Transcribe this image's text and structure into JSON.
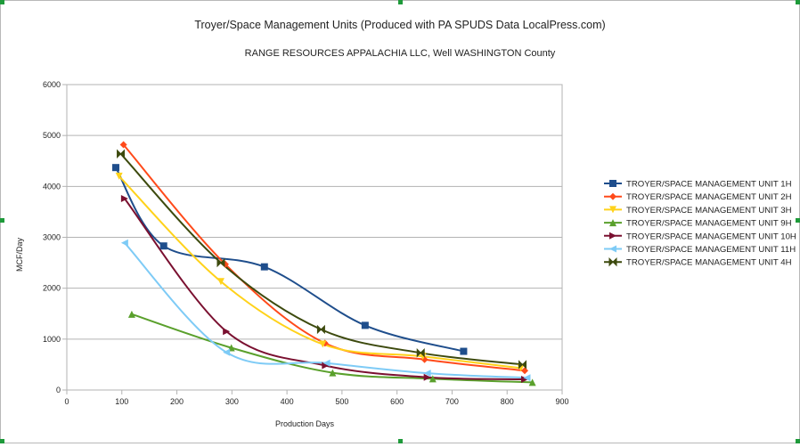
{
  "chart_data": {
    "type": "line",
    "title": "Troyer/Space Management Units (Produced with PA SPUDS Data LocalPress.com)",
    "subtitle": "RANGE RESOURCES APPALACHIA LLC, Well  WASHINGTON County",
    "xlabel": "Production Days",
    "ylabel": "MCF/Day",
    "xlim": [
      0,
      900
    ],
    "ylim": [
      0,
      6000
    ],
    "xticks": [
      "0",
      "100",
      "200",
      "300",
      "400",
      "500",
      "600",
      "700",
      "800",
      "900"
    ],
    "yticks": [
      "0",
      "1000",
      "2000",
      "3000",
      "4000",
      "5000",
      "6000"
    ],
    "grid": true,
    "legend_position": "right",
    "series": [
      {
        "name": "TROYER/SPACE MANAGEMENT UNIT 1H",
        "color": "#1f4e8c",
        "marker": "square",
        "x": [
          89,
          176,
          359,
          542,
          721
        ],
        "y": [
          4370,
          2830,
          2420,
          1270,
          760
        ]
      },
      {
        "name": "TROYER/SPACE MANAGEMENT UNIT 2H",
        "color": "#ff4a1a",
        "marker": "diamond",
        "x": [
          103,
          288,
          469,
          650,
          832
        ],
        "y": [
          4820,
          2470,
          920,
          600,
          380
        ]
      },
      {
        "name": "TROYER/SPACE MANAGEMENT UNIT 3H",
        "color": "#ffd21a",
        "marker": "triangle-down",
        "x": [
          95,
          280,
          465,
          647,
          825
        ],
        "y": [
          4200,
          2130,
          900,
          660,
          430
        ]
      },
      {
        "name": "TROYER/SPACE MANAGEMENT UNIT 9H",
        "color": "#5aa02c",
        "marker": "triangle-up",
        "x": [
          118,
          299,
          483,
          665,
          846
        ],
        "y": [
          1490,
          830,
          340,
          220,
          150
        ]
      },
      {
        "name": "TROYER/SPACE MANAGEMENT UNIT 10H",
        "color": "#7a1030",
        "marker": "triangle-right",
        "x": [
          105,
          290,
          470,
          655,
          832
        ],
        "y": [
          3760,
          1150,
          480,
          250,
          210
        ]
      },
      {
        "name": "TROYER/SPACE MANAGEMENT UNIT 11H",
        "color": "#7ecbf6",
        "marker": "triangle-left",
        "x": [
          105,
          290,
          472,
          655,
          836
        ],
        "y": [
          2890,
          740,
          530,
          330,
          240
        ]
      },
      {
        "name": "TROYER/SPACE MANAGEMENT UNIT 4H",
        "color": "#3d4a0e",
        "marker": "bowtie",
        "x": [
          98,
          280,
          462,
          643,
          828
        ],
        "y": [
          4640,
          2500,
          1190,
          730,
          500
        ]
      }
    ]
  }
}
